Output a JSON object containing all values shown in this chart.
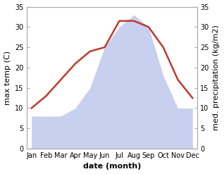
{
  "months": [
    "Jan",
    "Feb",
    "Mar",
    "Apr",
    "May",
    "Jun",
    "Jul",
    "Aug",
    "Sep",
    "Oct",
    "Nov",
    "Dec"
  ],
  "temp": [
    10,
    13,
    17,
    21,
    24,
    25,
    31.5,
    31.5,
    30,
    25,
    17,
    12.5
  ],
  "precip": [
    8,
    8,
    8,
    10,
    15,
    25,
    30,
    33,
    30,
    18,
    10,
    10
  ],
  "temp_color": "#c0392b",
  "precip_fill_color": "#c8d0f0",
  "ylim": [
    0,
    35
  ],
  "yticks": [
    0,
    5,
    10,
    15,
    20,
    25,
    30,
    35
  ],
  "ylabel_left": "max temp (C)",
  "ylabel_right": "med. precipitation (kg/m2)",
  "xlabel": "date (month)",
  "tick_fontsize": 7,
  "label_fontsize": 8,
  "line_width": 1.8
}
